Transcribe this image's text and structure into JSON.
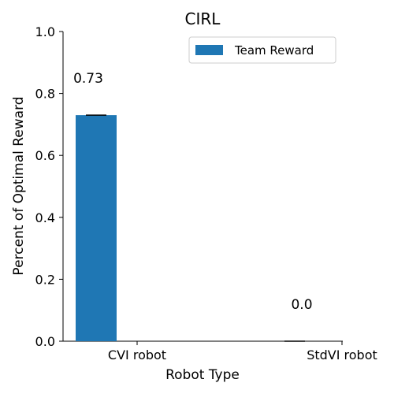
{
  "chart_data": {
    "type": "bar",
    "title": "CIRL",
    "xlabel": "Robot Type",
    "ylabel": "Percent of Optimal Reward",
    "categories": [
      "CVI robot",
      "StdVI robot"
    ],
    "series": [
      {
        "name": "Team Reward",
        "values": [
          0.73,
          0.0
        ],
        "error": [
          0.0,
          0.0
        ],
        "color": "#1f77b4"
      }
    ],
    "data_labels": [
      "0.73",
      "0.0"
    ],
    "ylim": [
      0,
      1.0
    ],
    "yticks": [
      "0.0",
      "0.2",
      "0.4",
      "0.6",
      "0.8",
      "1.0"
    ],
    "grid": false,
    "legend_position": "top-right"
  }
}
